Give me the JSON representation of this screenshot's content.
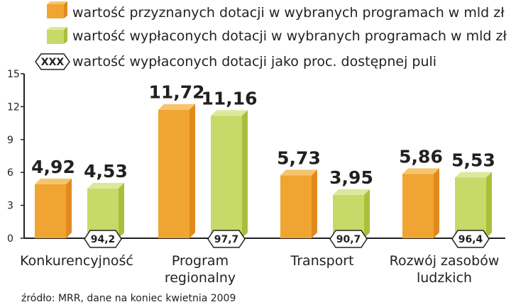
{
  "legend": {
    "granted": "wartość przyznanych dotacji w wybranych programach w mld zł",
    "paid": "wartość wypłaconych dotacji w wybranych programach w mld zł",
    "pct_marker": "XXX",
    "pct": "wartość wypłaconych dotacji jako proc. dostępnej puli"
  },
  "source": "źródło: MRR, dane na koniec kwietnia 2009",
  "colors": {
    "granted_front": "#f0a432",
    "granted_side": "#e08a1e",
    "granted_top": "#f7c46e",
    "paid_front": "#c7d968",
    "paid_side": "#a9bf3c",
    "paid_top": "#dde99a",
    "axis": "#231f20"
  },
  "chart_data": {
    "type": "bar",
    "categories": [
      "Konkurencyjność",
      "Program regionalny",
      "Transport",
      "Rozwój zasobów ludzkich"
    ],
    "category_lines": [
      [
        "Konkurencyjność"
      ],
      [
        "Program",
        "regionalny"
      ],
      [
        "Transport"
      ],
      [
        "Rozwój zasobów",
        "ludzkich"
      ]
    ],
    "series": [
      {
        "name": "wartość przyznanych dotacji w wybranych programach w mld zł",
        "values": [
          4.92,
          11.72,
          5.73,
          5.86
        ],
        "labels": [
          "4,92",
          "11,72",
          "5,73",
          "5,86"
        ]
      },
      {
        "name": "wartość wypłaconych dotacji w wybranych programach w mld zł",
        "values": [
          4.53,
          11.16,
          3.95,
          5.53
        ],
        "labels": [
          "4,53",
          "11,16",
          "3,95",
          "5,53"
        ]
      }
    ],
    "percent_of_pool": {
      "name": "wartość wypłaconych dotacji jako proc. dostępnej puli",
      "values": [
        94.2,
        97.7,
        90.7,
        96.4
      ],
      "labels": [
        "94,2",
        "97,7",
        "90,7",
        "96,4"
      ]
    },
    "y_ticks": [
      "0",
      "3",
      "6",
      "9",
      "12",
      "15"
    ],
    "ylim": [
      0,
      15
    ],
    "grid": false,
    "legend_position": "top"
  }
}
